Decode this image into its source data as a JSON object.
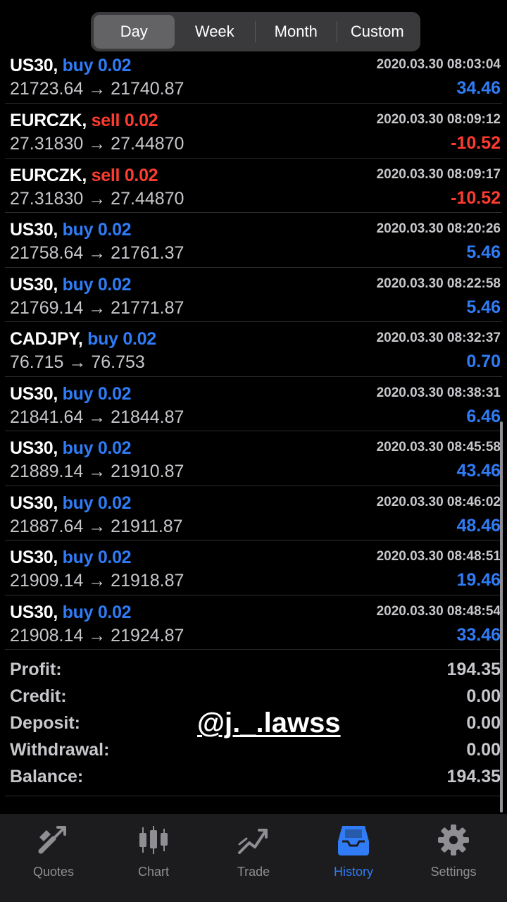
{
  "periods": [
    "Day",
    "Week",
    "Month",
    "Custom"
  ],
  "active_period": "Day",
  "arrow": "→",
  "deals": [
    {
      "symbol": "US30,",
      "side": "buy",
      "volume": "buy 0.02",
      "time": "2020.03.30 08:03:04",
      "prices": "21723.64 → 21740.87",
      "profit": "34.46"
    },
    {
      "symbol": "EURCZK,",
      "side": "sell",
      "volume": "sell 0.02",
      "time": "2020.03.30 08:09:12",
      "prices": "27.31830 → 27.44870",
      "profit": "-10.52"
    },
    {
      "symbol": "EURCZK,",
      "side": "sell",
      "volume": "sell 0.02",
      "time": "2020.03.30 08:09:17",
      "prices": "27.31830 → 27.44870",
      "profit": "-10.52"
    },
    {
      "symbol": "US30,",
      "side": "buy",
      "volume": "buy 0.02",
      "time": "2020.03.30 08:20:26",
      "prices": "21758.64 → 21761.37",
      "profit": "5.46"
    },
    {
      "symbol": "US30,",
      "side": "buy",
      "volume": "buy 0.02",
      "time": "2020.03.30 08:22:58",
      "prices": "21769.14 → 21771.87",
      "profit": "5.46"
    },
    {
      "symbol": "CADJPY,",
      "side": "buy",
      "volume": "buy 0.02",
      "time": "2020.03.30 08:32:37",
      "prices": "76.715 → 76.753",
      "profit": "0.70"
    },
    {
      "symbol": "US30,",
      "side": "buy",
      "volume": "buy 0.02",
      "time": "2020.03.30 08:38:31",
      "prices": "21841.64 → 21844.87",
      "profit": "6.46"
    },
    {
      "symbol": "US30,",
      "side": "buy",
      "volume": "buy 0.02",
      "time": "2020.03.30 08:45:58",
      "prices": "21889.14 → 21910.87",
      "profit": "43.46"
    },
    {
      "symbol": "US30,",
      "side": "buy",
      "volume": "buy 0.02",
      "time": "2020.03.30 08:46:02",
      "prices": "21887.64 → 21911.87",
      "profit": "48.46"
    },
    {
      "symbol": "US30,",
      "side": "buy",
      "volume": "buy 0.02",
      "time": "2020.03.30 08:48:51",
      "prices": "21909.14 → 21918.87",
      "profit": "19.46"
    },
    {
      "symbol": "US30,",
      "side": "buy",
      "volume": "buy 0.02",
      "time": "2020.03.30 08:48:54",
      "prices": "21908.14 → 21924.87",
      "profit": "33.46"
    }
  ],
  "summary": [
    {
      "label": "Profit:",
      "value": "194.35"
    },
    {
      "label": "Credit:",
      "value": "0.00"
    },
    {
      "label": "Deposit:",
      "value": "0.00"
    },
    {
      "label": "Withdrawal:",
      "value": "0.00"
    },
    {
      "label": "Balance:",
      "value": "194.35"
    }
  ],
  "watermark": "@j._.lawss",
  "tabs": [
    {
      "label": "Quotes",
      "icon": "quotes-icon"
    },
    {
      "label": "Chart",
      "icon": "chart-icon"
    },
    {
      "label": "Trade",
      "icon": "trade-icon"
    },
    {
      "label": "History",
      "icon": "history-icon",
      "active": true
    },
    {
      "label": "Settings",
      "icon": "settings-icon"
    }
  ],
  "colors": {
    "buy": "#2f7cf6",
    "sell": "#ff3b30",
    "accent": "#2f7cf6",
    "muted": "#8e8e93"
  }
}
